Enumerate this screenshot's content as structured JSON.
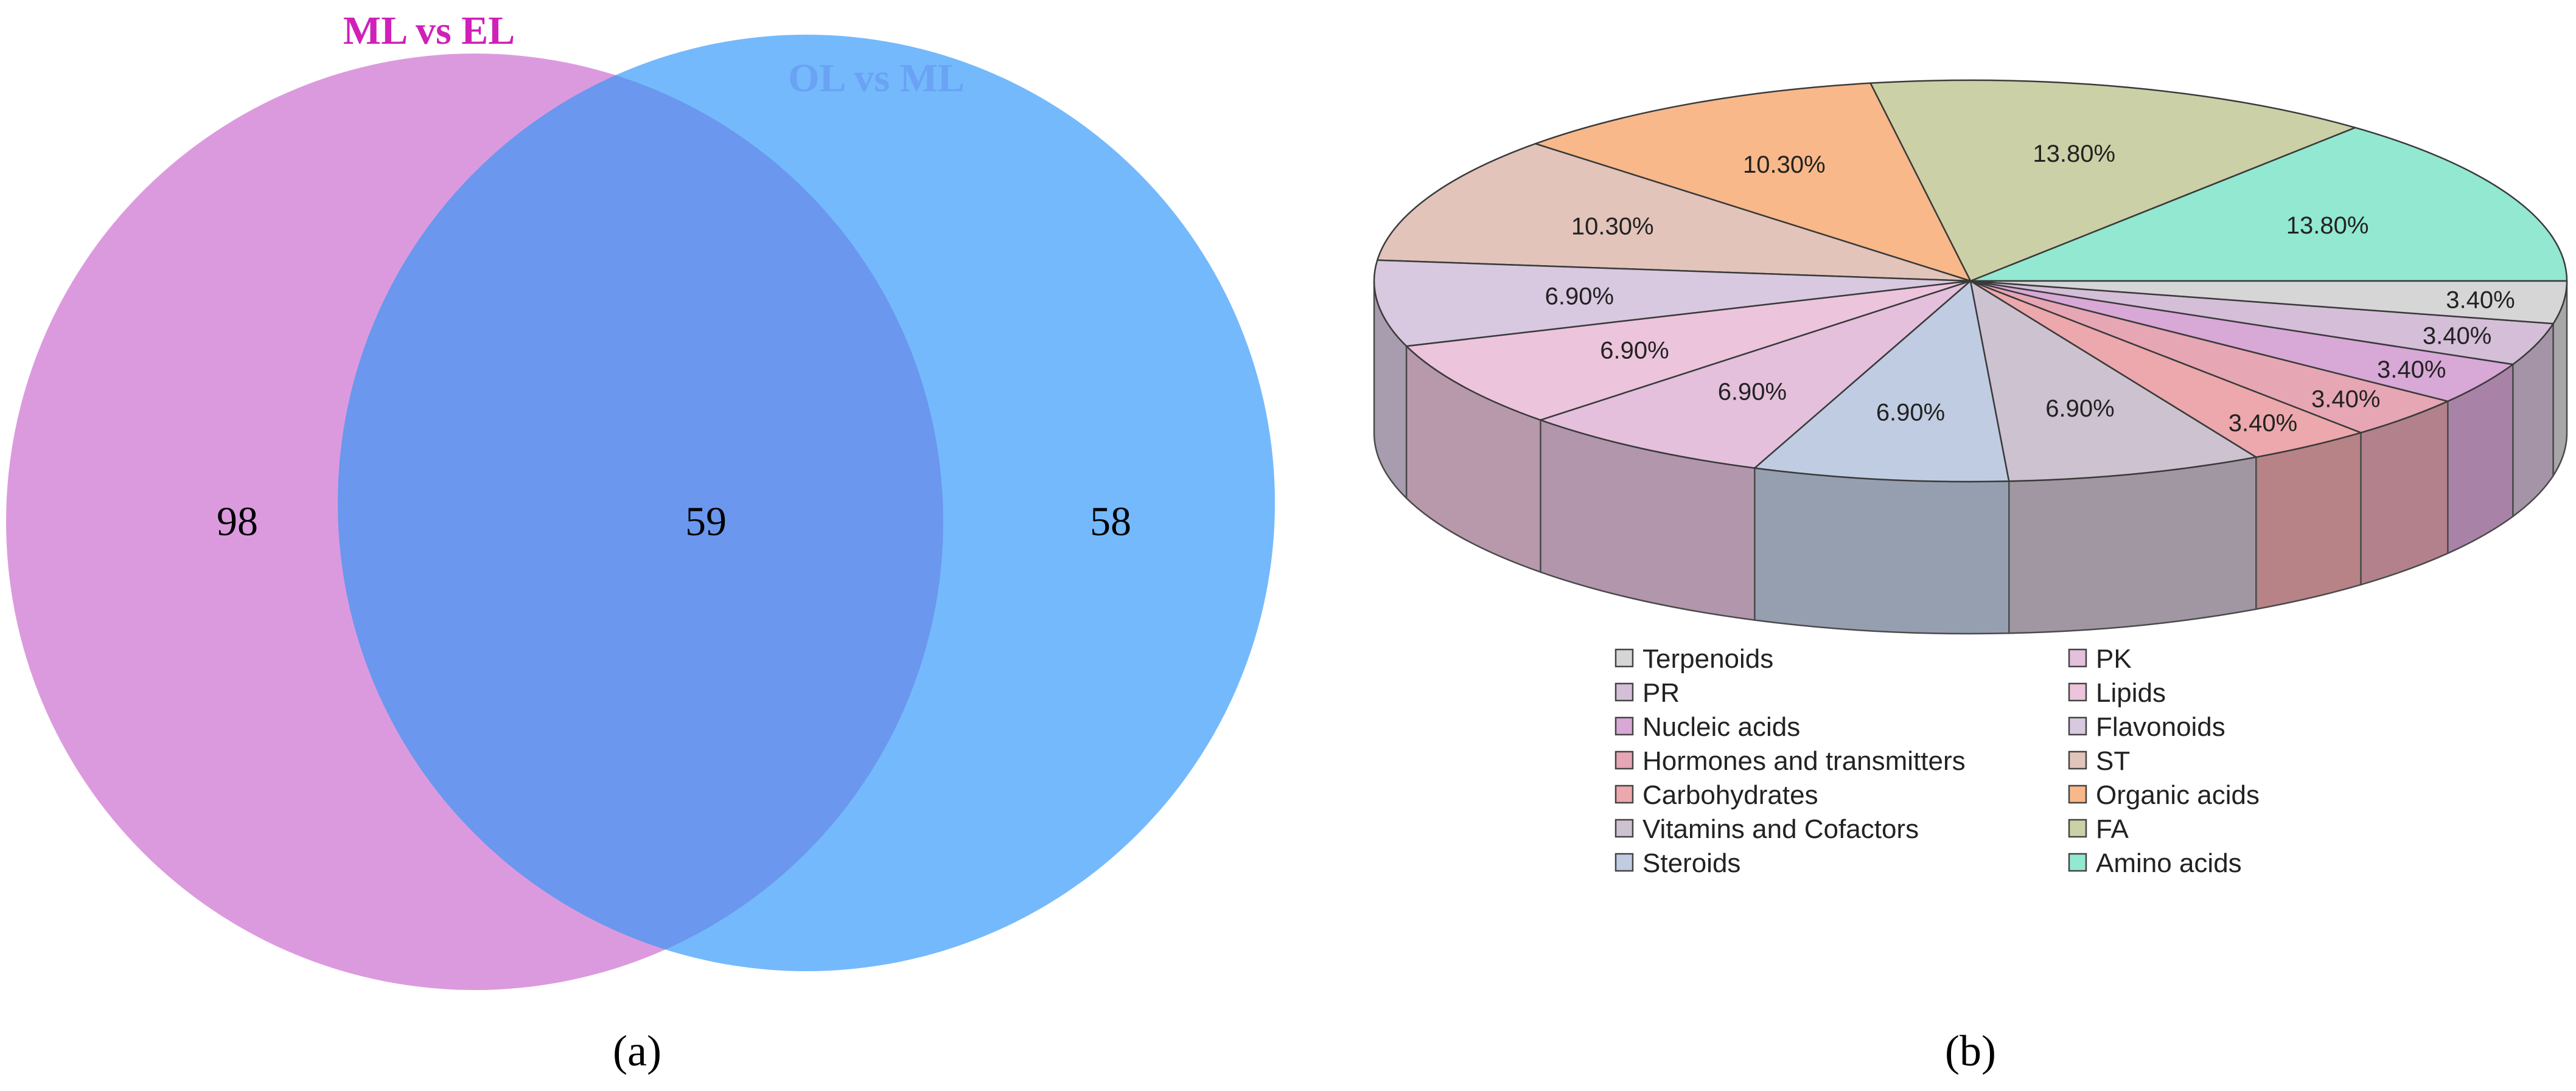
{
  "chart_data": [
    {
      "type": "venn",
      "panel_label": "(a)",
      "sets": [
        {
          "name": "ML vs EL",
          "color": "#dc9ade",
          "label_color": "#d020b8"
        },
        {
          "name": "OL vs ML",
          "color": "#74b9fc",
          "label_color": "#6aa2f4"
        }
      ],
      "regions": [
        {
          "sets": [
            "ML vs EL"
          ],
          "value": 98
        },
        {
          "sets": [
            "ML vs EL",
            "OL vs ML"
          ],
          "value": 59,
          "color": "#6b97ee"
        },
        {
          "sets": [
            "OL vs ML"
          ],
          "value": 58
        }
      ]
    },
    {
      "type": "pie",
      "style": "3d",
      "panel_label": "(b)",
      "slices": [
        {
          "label": "Amino acids",
          "value": 13.8,
          "display": "13.80%",
          "color": "#92e8d0"
        },
        {
          "label": "FA",
          "value": 13.8,
          "display": "13.80%",
          "color": "#ccd0a6"
        },
        {
          "label": "Organic acids",
          "value": 10.3,
          "display": "10.30%",
          "color": "#f8b88a"
        },
        {
          "label": "ST",
          "value": 10.3,
          "display": "10.30%",
          "color": "#e2c4ba"
        },
        {
          "label": "Flavonoids",
          "value": 6.9,
          "display": "6.90%",
          "color": "#d8c8e0"
        },
        {
          "label": "Lipids",
          "value": 6.9,
          "display": "6.90%",
          "color": "#ecc4dc"
        },
        {
          "label": "PK",
          "value": 6.9,
          "display": "6.90%",
          "color": "#e4c0dc"
        },
        {
          "label": "Steroids",
          "value": 6.9,
          "display": "6.90%",
          "color": "#c0cce2"
        },
        {
          "label": "Vitamins and Cofactors",
          "value": 6.9,
          "display": "6.90%",
          "color": "#cdc2d0"
        },
        {
          "label": "Carbohydrates",
          "value": 3.4,
          "display": "3.40%",
          "color": "#eca8ac"
        },
        {
          "label": "Hormones and transmitters",
          "value": 3.4,
          "display": "3.40%",
          "color": "#e6a6b4"
        },
        {
          "label": "Nucleic acids",
          "value": 3.4,
          "display": "3.40%",
          "color": "#d8a8d6"
        },
        {
          "label": "PR",
          "value": 3.4,
          "display": "3.40%",
          "color": "#d4bed8"
        },
        {
          "label": "Terpenoids",
          "value": 3.4,
          "display": "3.40%",
          "color": "#d6d6d6"
        }
      ],
      "legend": {
        "position": "bottom",
        "columns": [
          [
            "Terpenoids",
            "PR",
            "Nucleic acids",
            "Hormones and transmitters",
            "Carbohydrates",
            "Vitamins and Cofactors",
            "Steroids"
          ],
          [
            "PK",
            "Lipids",
            "Flavonoids",
            "ST",
            "Organic acids",
            "FA",
            "Amino acids"
          ]
        ]
      }
    }
  ]
}
